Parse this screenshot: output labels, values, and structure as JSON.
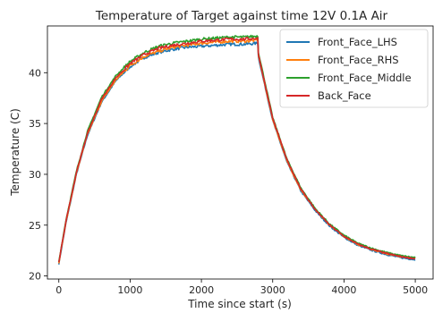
{
  "chart_data": {
    "type": "line",
    "title": "Temperature of Target against time  12V 0.1A Air",
    "xlabel": "Time since start (s)",
    "ylabel": "Temperature (C)",
    "xlim": [
      -160,
      5250
    ],
    "ylim": [
      19.7,
      44.6
    ],
    "xticks": [
      0,
      1000,
      2000,
      3000,
      4000,
      5000
    ],
    "yticks": [
      20,
      25,
      30,
      35,
      40
    ],
    "grid": false,
    "legend_position": "top-right",
    "heating_end_time": 2790,
    "series": [
      {
        "name": "Front_Face_LHS",
        "color": "#1f77b4",
        "points": [
          [
            0,
            21.2
          ],
          [
            100,
            25.2
          ],
          [
            250,
            30.1
          ],
          [
            400,
            33.8
          ],
          [
            600,
            37.1
          ],
          [
            800,
            39.2
          ],
          [
            1000,
            40.6
          ],
          [
            1200,
            41.5
          ],
          [
            1400,
            42.0
          ],
          [
            1600,
            42.3
          ],
          [
            1800,
            42.5
          ],
          [
            2000,
            42.6
          ],
          [
            2200,
            42.7
          ],
          [
            2400,
            42.8
          ],
          [
            2600,
            42.8
          ],
          [
            2790,
            42.9
          ],
          [
            2800,
            41.5
          ],
          [
            2900,
            38.4
          ],
          [
            3000,
            35.3
          ],
          [
            3200,
            31.2
          ],
          [
            3400,
            28.3
          ],
          [
            3600,
            26.4
          ],
          [
            3800,
            24.9
          ],
          [
            4000,
            23.8
          ],
          [
            4200,
            23.0
          ],
          [
            4400,
            22.5
          ],
          [
            4600,
            22.1
          ],
          [
            4800,
            21.8
          ],
          [
            5000,
            21.6
          ]
        ]
      },
      {
        "name": "Front_Face_RHS",
        "color": "#ff7f0e",
        "points": [
          [
            0,
            21.3
          ],
          [
            100,
            25.3
          ],
          [
            250,
            30.2
          ],
          [
            400,
            33.9
          ],
          [
            600,
            37.2
          ],
          [
            800,
            39.3
          ],
          [
            1000,
            40.7
          ],
          [
            1200,
            41.6
          ],
          [
            1400,
            42.1
          ],
          [
            1600,
            42.5
          ],
          [
            1800,
            42.7
          ],
          [
            2000,
            42.9
          ],
          [
            2200,
            43.0
          ],
          [
            2400,
            43.1
          ],
          [
            2600,
            43.1
          ],
          [
            2790,
            43.2
          ],
          [
            2800,
            41.7
          ],
          [
            2900,
            38.5
          ],
          [
            3000,
            35.4
          ],
          [
            3200,
            31.3
          ],
          [
            3400,
            28.4
          ],
          [
            3600,
            26.5
          ],
          [
            3800,
            25.0
          ],
          [
            4000,
            23.9
          ],
          [
            4200,
            23.1
          ],
          [
            4400,
            22.6
          ],
          [
            4600,
            22.2
          ],
          [
            4800,
            21.9
          ],
          [
            5000,
            21.7
          ]
        ]
      },
      {
        "name": "Front_Face_Middle",
        "color": "#2ca02c",
        "points": [
          [
            0,
            21.4
          ],
          [
            100,
            25.5
          ],
          [
            250,
            30.4
          ],
          [
            400,
            34.2
          ],
          [
            600,
            37.6
          ],
          [
            800,
            39.7
          ],
          [
            1000,
            41.1
          ],
          [
            1200,
            42.0
          ],
          [
            1400,
            42.6
          ],
          [
            1600,
            42.9
          ],
          [
            1800,
            43.1
          ],
          [
            2000,
            43.3
          ],
          [
            2200,
            43.4
          ],
          [
            2400,
            43.5
          ],
          [
            2600,
            43.5
          ],
          [
            2790,
            43.6
          ],
          [
            2800,
            42.0
          ],
          [
            2900,
            38.8
          ],
          [
            3000,
            35.6
          ],
          [
            3200,
            31.5
          ],
          [
            3400,
            28.6
          ],
          [
            3600,
            26.6
          ],
          [
            3800,
            25.1
          ],
          [
            4000,
            24.0
          ],
          [
            4200,
            23.2
          ],
          [
            4400,
            22.7
          ],
          [
            4600,
            22.3
          ],
          [
            4800,
            22.0
          ],
          [
            5000,
            21.8
          ]
        ]
      },
      {
        "name": "Back_Face",
        "color": "#d62728",
        "points": [
          [
            0,
            21.3
          ],
          [
            100,
            25.4
          ],
          [
            250,
            30.3
          ],
          [
            400,
            34.0
          ],
          [
            600,
            37.4
          ],
          [
            800,
            39.5
          ],
          [
            1000,
            40.9
          ],
          [
            1200,
            41.8
          ],
          [
            1400,
            42.4
          ],
          [
            1600,
            42.7
          ],
          [
            1800,
            42.9
          ],
          [
            2000,
            43.1
          ],
          [
            2200,
            43.2
          ],
          [
            2400,
            43.3
          ],
          [
            2600,
            43.3
          ],
          [
            2790,
            43.4
          ],
          [
            2800,
            41.8
          ],
          [
            2900,
            38.6
          ],
          [
            3000,
            35.5
          ],
          [
            3200,
            31.4
          ],
          [
            3400,
            28.5
          ],
          [
            3600,
            26.5
          ],
          [
            3800,
            25.0
          ],
          [
            4000,
            23.9
          ],
          [
            4200,
            23.1
          ],
          [
            4400,
            22.6
          ],
          [
            4600,
            22.2
          ],
          [
            4800,
            21.9
          ],
          [
            5000,
            21.7
          ]
        ]
      }
    ]
  }
}
